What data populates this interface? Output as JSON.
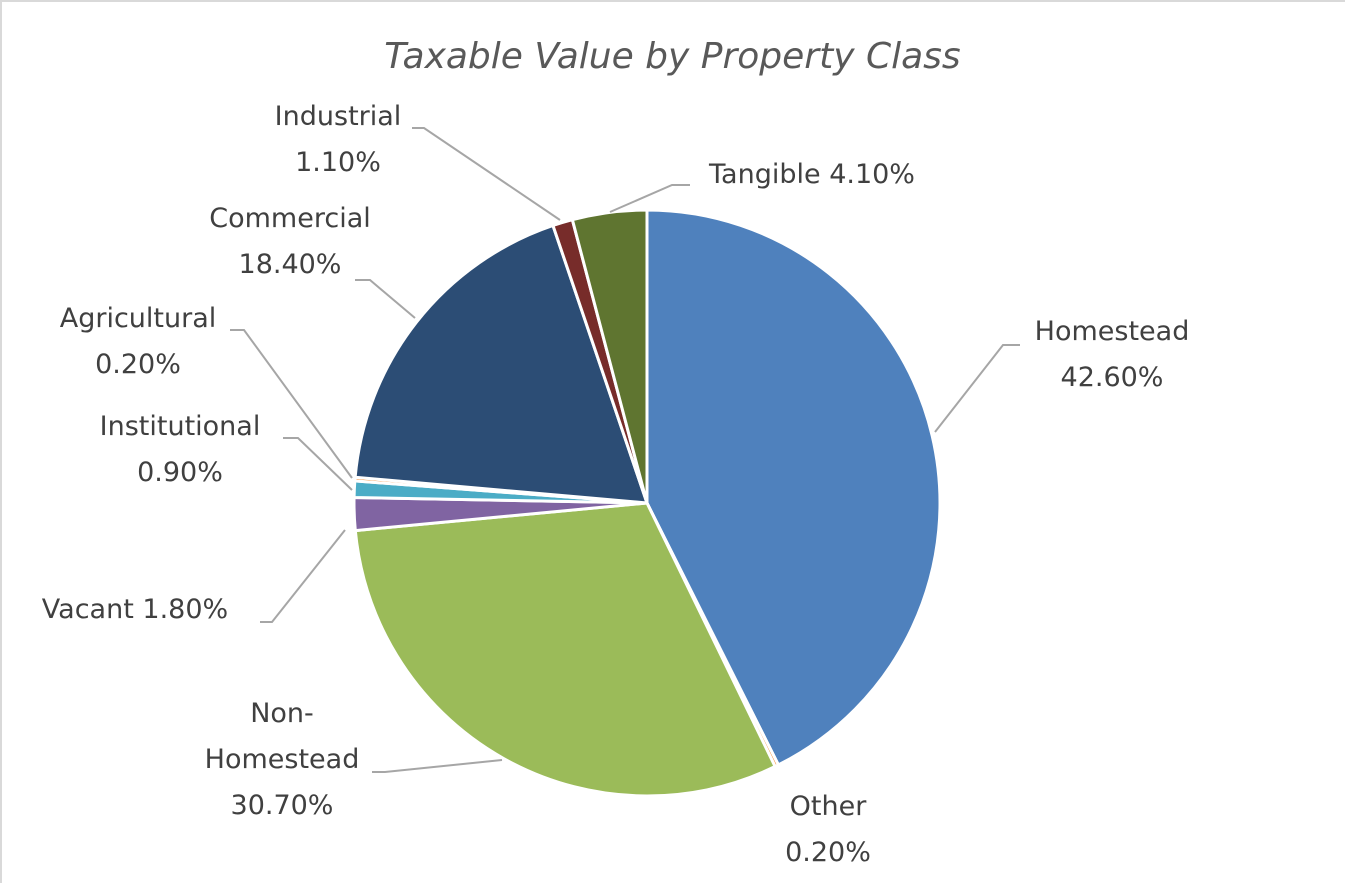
{
  "chart_data": {
    "type": "pie",
    "title": "Taxable Value by Property Class",
    "categories": [
      "Homestead",
      "Other",
      "Non-Homestead",
      "Vacant",
      "Institutional",
      "Agricultural",
      "Commercial",
      "Industrial",
      "Tangible"
    ],
    "values": [
      42.6,
      0.2,
      30.7,
      1.8,
      0.9,
      0.2,
      18.4,
      1.1,
      4.1
    ],
    "value_labels": [
      "42.60%",
      "0.20%",
      "30.70%",
      "1.80%",
      "0.90%",
      "0.20%",
      "18.40%",
      "1.10%",
      "4.10%"
    ],
    "colors": [
      "#4f81bd",
      "#f79646",
      "#9bbb59",
      "#8064a2",
      "#4bacc6",
      "#f79646",
      "#2c4d75",
      "#772c2a",
      "#5f7530"
    ]
  }
}
